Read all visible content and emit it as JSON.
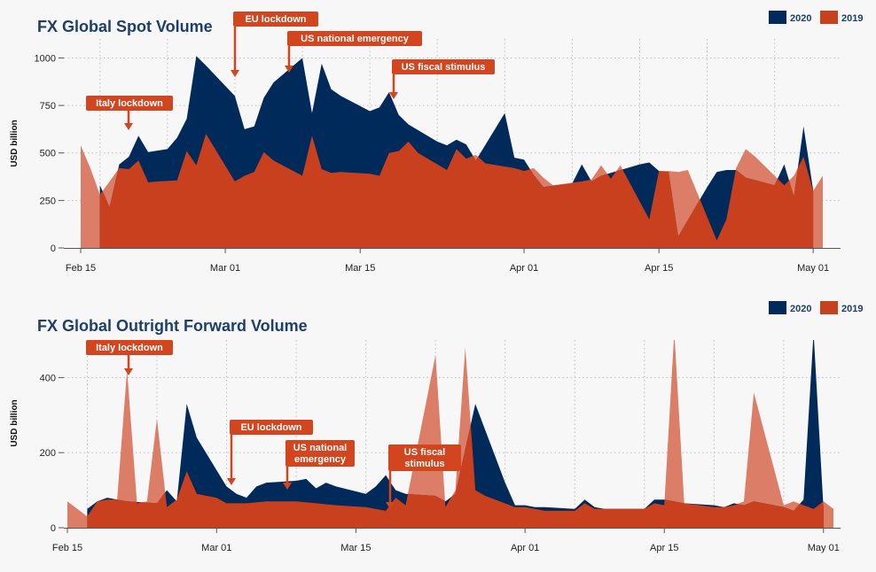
{
  "colors": {
    "y2020": "#002a5a",
    "y2019": "#c9401f",
    "y2019_light": "#dc7d68",
    "title": "#1c3f6e",
    "annotation_bg": "#d2451f",
    "grid": "#bdbdbd",
    "axis_text": "#222222"
  },
  "chart_data": [
    {
      "type": "area",
      "title": "FX Global Spot Volume",
      "ylabel": "USD billion",
      "xlabel": "",
      "ylim": [
        0,
        1100
      ],
      "yticks": [
        0,
        250,
        500,
        750,
        1000
      ],
      "ytick_labels": [
        "0",
        "250",
        "500",
        "750",
        "1000"
      ],
      "xlim": [
        "2020-02-15",
        "2020-05-02"
      ],
      "xticks": [
        "2020-02-15",
        "2020-03-01",
        "2020-03-15",
        "2020-04-01",
        "2020-04-15",
        "2020-05-01"
      ],
      "xtick_labels": [
        "Feb 15",
        "Mar 01",
        "Mar 15",
        "Apr 01",
        "Apr 15",
        "May 01"
      ],
      "grid": true,
      "legend": "top-right",
      "legend_entries": [
        "2020",
        "2019"
      ],
      "series": [
        {
          "name": "2020",
          "x": [
            "2020-02-17",
            "2020-02-18",
            "2020-02-19",
            "2020-02-20",
            "2020-02-21",
            "2020-02-22",
            "2020-02-24",
            "2020-02-25",
            "2020-02-26",
            "2020-02-27",
            "2020-02-28",
            "2020-03-02",
            "2020-03-03",
            "2020-03-04",
            "2020-03-05",
            "2020-03-06",
            "2020-03-09",
            "2020-03-10",
            "2020-03-11",
            "2020-03-12",
            "2020-03-13",
            "2020-03-16",
            "2020-03-17",
            "2020-03-18",
            "2020-03-19",
            "2020-03-20",
            "2020-03-23",
            "2020-03-24",
            "2020-03-25",
            "2020-03-26",
            "2020-03-27",
            "2020-03-30",
            "2020-03-31",
            "2020-04-01",
            "2020-04-02",
            "2020-04-03",
            "2020-04-06",
            "2020-04-07",
            "2020-04-08",
            "2020-04-09",
            "2020-04-13",
            "2020-04-14",
            "2020-04-15",
            "2020-04-16",
            "2020-04-17",
            "2020-04-20",
            "2020-04-21",
            "2020-04-22",
            "2020-04-23",
            "2020-04-24",
            "2020-04-27",
            "2020-04-28",
            "2020-04-29",
            "2020-04-30",
            "2020-05-01"
          ],
          "values": [
            330,
            215,
            440,
            480,
            590,
            505,
            520,
            580,
            680,
            1010,
            960,
            800,
            625,
            640,
            790,
            870,
            1000,
            710,
            970,
            835,
            800,
            720,
            740,
            820,
            700,
            650,
            560,
            540,
            570,
            545,
            460,
            710,
            475,
            465,
            385,
            320,
            340,
            440,
            350,
            380,
            440,
            450,
            405,
            400,
            60,
            320,
            400,
            410,
            410,
            370,
            330,
            440,
            270,
            640,
            305
          ]
        },
        {
          "name": "2019",
          "x": [
            "2020-02-15",
            "2020-02-16",
            "2020-02-17",
            "2020-02-19",
            "2020-02-20",
            "2020-02-21",
            "2020-02-22",
            "2020-02-23",
            "2020-02-25",
            "2020-02-26",
            "2020-02-27",
            "2020-02-28",
            "2020-03-02",
            "2020-03-03",
            "2020-03-04",
            "2020-03-05",
            "2020-03-06",
            "2020-03-09",
            "2020-03-10",
            "2020-03-11",
            "2020-03-12",
            "2020-03-13",
            "2020-03-16",
            "2020-03-17",
            "2020-03-18",
            "2020-03-19",
            "2020-03-20",
            "2020-03-21",
            "2020-03-24",
            "2020-03-25",
            "2020-03-26",
            "2020-03-27",
            "2020-03-28",
            "2020-03-31",
            "2020-04-01",
            "2020-04-02",
            "2020-04-03",
            "2020-04-04",
            "2020-04-07",
            "2020-04-08",
            "2020-04-09",
            "2020-04-10",
            "2020-04-11",
            "2020-04-14",
            "2020-04-15",
            "2020-04-16",
            "2020-04-17",
            "2020-04-18",
            "2020-04-21",
            "2020-04-22",
            "2020-04-23",
            "2020-04-24",
            "2020-04-25",
            "2020-04-28",
            "2020-04-29",
            "2020-04-30",
            "2020-05-01",
            "2020-05-02"
          ],
          "values": [
            540,
            420,
            280,
            420,
            415,
            460,
            345,
            350,
            355,
            510,
            435,
            600,
            350,
            380,
            400,
            505,
            460,
            380,
            590,
            415,
            395,
            400,
            390,
            380,
            500,
            510,
            560,
            500,
            410,
            520,
            470,
            490,
            445,
            420,
            405,
            420,
            370,
            330,
            350,
            360,
            435,
            365,
            435,
            150,
            405,
            405,
            400,
            410,
            40,
            150,
            420,
            520,
            480,
            330,
            380,
            480,
            300,
            380
          ]
        }
      ],
      "annotations": [
        "Italy lockdown",
        "EU lockdown",
        "US national emergency",
        "US fiscal stimulus"
      ]
    },
    {
      "type": "area",
      "title": "FX Global Outright Forward Volume",
      "ylabel": "USD billion",
      "xlabel": "",
      "ylim": [
        0,
        500
      ],
      "yticks": [
        0,
        200,
        400
      ],
      "ytick_labels": [
        "0",
        "200",
        "400"
      ],
      "xlim": [
        "2020-02-15",
        "2020-05-02"
      ],
      "xticks": [
        "2020-02-15",
        "2020-03-01",
        "2020-03-15",
        "2020-04-01",
        "2020-04-15",
        "2020-05-01"
      ],
      "xtick_labels": [
        "Feb 15",
        "Mar 01",
        "Mar 15",
        "Apr 01",
        "Apr 15",
        "May 01"
      ],
      "grid": true,
      "legend": "top-right",
      "legend_entries": [
        "2020",
        "2019"
      ],
      "series": [
        {
          "name": "2020",
          "x": [
            "2020-02-17",
            "2020-02-18",
            "2020-02-19",
            "2020-02-20",
            "2020-02-21",
            "2020-02-24",
            "2020-02-25",
            "2020-02-26",
            "2020-02-27",
            "2020-02-28",
            "2020-03-02",
            "2020-03-03",
            "2020-03-04",
            "2020-03-05",
            "2020-03-06",
            "2020-03-09",
            "2020-03-10",
            "2020-03-11",
            "2020-03-12",
            "2020-03-13",
            "2020-03-16",
            "2020-03-17",
            "2020-03-18",
            "2020-03-19",
            "2020-03-20",
            "2020-03-23",
            "2020-03-24",
            "2020-03-25",
            "2020-03-26",
            "2020-03-27",
            "2020-03-30",
            "2020-03-31",
            "2020-04-01",
            "2020-04-02",
            "2020-04-03",
            "2020-04-06",
            "2020-04-07",
            "2020-04-08",
            "2020-04-09",
            "2020-04-13",
            "2020-04-14",
            "2020-04-15",
            "2020-04-16",
            "2020-04-17",
            "2020-04-20",
            "2020-04-21",
            "2020-04-22",
            "2020-04-23",
            "2020-04-24",
            "2020-04-27",
            "2020-04-28",
            "2020-04-29",
            "2020-04-30",
            "2020-05-01"
          ],
          "values": [
            50,
            70,
            80,
            75,
            70,
            65,
            100,
            70,
            330,
            240,
            110,
            90,
            80,
            110,
            120,
            125,
            130,
            105,
            120,
            110,
            90,
            110,
            140,
            100,
            90,
            85,
            70,
            90,
            210,
            330,
            120,
            60,
            60,
            55,
            55,
            50,
            75,
            55,
            50,
            50,
            75,
            75,
            70,
            65,
            60,
            55,
            65,
            60,
            70,
            55,
            45,
            75,
            520,
            50
          ]
        },
        {
          "name": "2019",
          "x": [
            "2020-02-15",
            "2020-02-16",
            "2020-02-17",
            "2020-02-18",
            "2020-02-19",
            "2020-02-20",
            "2020-02-21",
            "2020-02-22",
            "2020-02-23",
            "2020-02-24",
            "2020-02-25",
            "2020-02-26",
            "2020-02-27",
            "2020-02-28",
            "2020-02-29",
            "2020-03-01",
            "2020-03-02",
            "2020-03-04",
            "2020-03-06",
            "2020-03-09",
            "2020-03-11",
            "2020-03-13",
            "2020-03-16",
            "2020-03-18",
            "2020-03-19",
            "2020-03-20",
            "2020-03-23",
            "2020-03-24",
            "2020-03-25",
            "2020-03-26",
            "2020-03-27",
            "2020-03-28",
            "2020-03-31",
            "2020-04-01",
            "2020-04-03",
            "2020-04-06",
            "2020-04-07",
            "2020-04-08",
            "2020-04-09",
            "2020-04-13",
            "2020-04-14",
            "2020-04-15",
            "2020-04-16",
            "2020-04-17",
            "2020-04-20",
            "2020-04-21",
            "2020-04-22",
            "2020-04-23",
            "2020-04-24",
            "2020-04-27",
            "2020-04-28",
            "2020-04-29",
            "2020-04-30",
            "2020-05-01",
            "2020-05-02"
          ],
          "values": [
            70,
            50,
            30,
            70,
            75,
            75,
            420,
            65,
            70,
            290,
            55,
            75,
            150,
            90,
            85,
            80,
            65,
            65,
            70,
            70,
            65,
            60,
            55,
            45,
            80,
            60,
            460,
            55,
            100,
            480,
            100,
            85,
            55,
            55,
            45,
            45,
            65,
            50,
            50,
            50,
            65,
            60,
            520,
            65,
            55,
            55,
            60,
            70,
            360,
            60,
            70,
            60,
            50,
            70,
            50
          ]
        }
      ],
      "annotations": [
        "Italy lockdown",
        "EU lockdown",
        "US national\nemergency",
        "US fiscal\nstimulus"
      ]
    }
  ]
}
